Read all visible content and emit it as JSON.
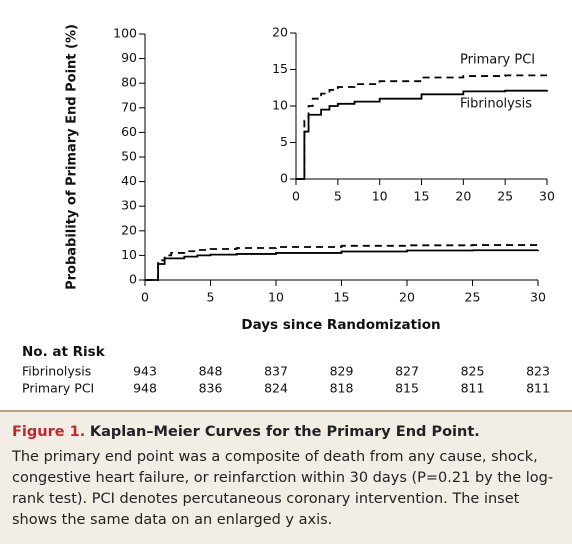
{
  "chart_data": [
    {
      "type": "step",
      "ylabel": "Probability of Primary End Point (%)",
      "xlabel": "Days since Randomization",
      "x": [
        0,
        1,
        1.5,
        2,
        3,
        4,
        5,
        7,
        10,
        15,
        20,
        25,
        30
      ],
      "series": [
        {
          "color": "#000000",
          "dashed": false,
          "values": [
            0,
            6.5,
            8.8,
            8.8,
            9.5,
            10,
            10.3,
            10.6,
            11,
            11.6,
            12,
            12.1,
            12.2
          ]
        },
        {
          "color": "#000000",
          "dashed": true,
          "values": [
            0,
            8,
            10,
            11,
            11.7,
            12.2,
            12.6,
            13,
            13.4,
            13.9,
            14.1,
            14.2,
            14.2
          ]
        }
      ],
      "xlim": [
        0,
        30
      ],
      "xticks": [
        0,
        5,
        10,
        15,
        20,
        25,
        30
      ],
      "ylim": [
        0,
        100
      ],
      "yticks": [
        0,
        10,
        20,
        30,
        40,
        50,
        60,
        70,
        80,
        90,
        100
      ]
    },
    {
      "type": "step",
      "x": [
        0,
        1,
        1.5,
        2,
        3,
        4,
        5,
        7,
        10,
        15,
        20,
        25,
        30
      ],
      "series": [
        {
          "name": "Fibrinolysis",
          "color": "#000000",
          "dashed": false,
          "values": [
            0,
            6.5,
            8.8,
            8.8,
            9.5,
            10,
            10.3,
            10.6,
            11,
            11.6,
            12,
            12.1,
            12.2
          ]
        },
        {
          "name": "Primary PCI",
          "color": "#000000",
          "dashed": true,
          "values": [
            0,
            8,
            10,
            11,
            11.7,
            12.2,
            12.6,
            13,
            13.4,
            13.9,
            14.1,
            14.2,
            14.2
          ]
        }
      ],
      "xlim": [
        0,
        30
      ],
      "xticks": [
        0,
        5,
        10,
        15,
        20,
        25,
        30
      ],
      "ylim": [
        0,
        20
      ],
      "yticks": [
        0,
        5,
        10,
        15,
        20
      ]
    }
  ],
  "risk_table": {
    "title": "No. at Risk",
    "rows": [
      {
        "label": "Fibrinolysis",
        "values": [
          943,
          848,
          837,
          829,
          827,
          825,
          823
        ]
      },
      {
        "label": "Primary PCI",
        "values": [
          948,
          836,
          824,
          818,
          815,
          811,
          811
        ]
      }
    ]
  },
  "caption": {
    "label": "Figure 1.",
    "title": "Kaplan–Meier Curves for the Primary End Point.",
    "text": "The primary end point was a composite of death from any cause, shock, congestive heart failure, or reinfarction within 30 days (P=0.21 by the log-rank test). PCI denotes percutaneous coronary intervention. The inset shows the same data on an enlarged y axis."
  }
}
